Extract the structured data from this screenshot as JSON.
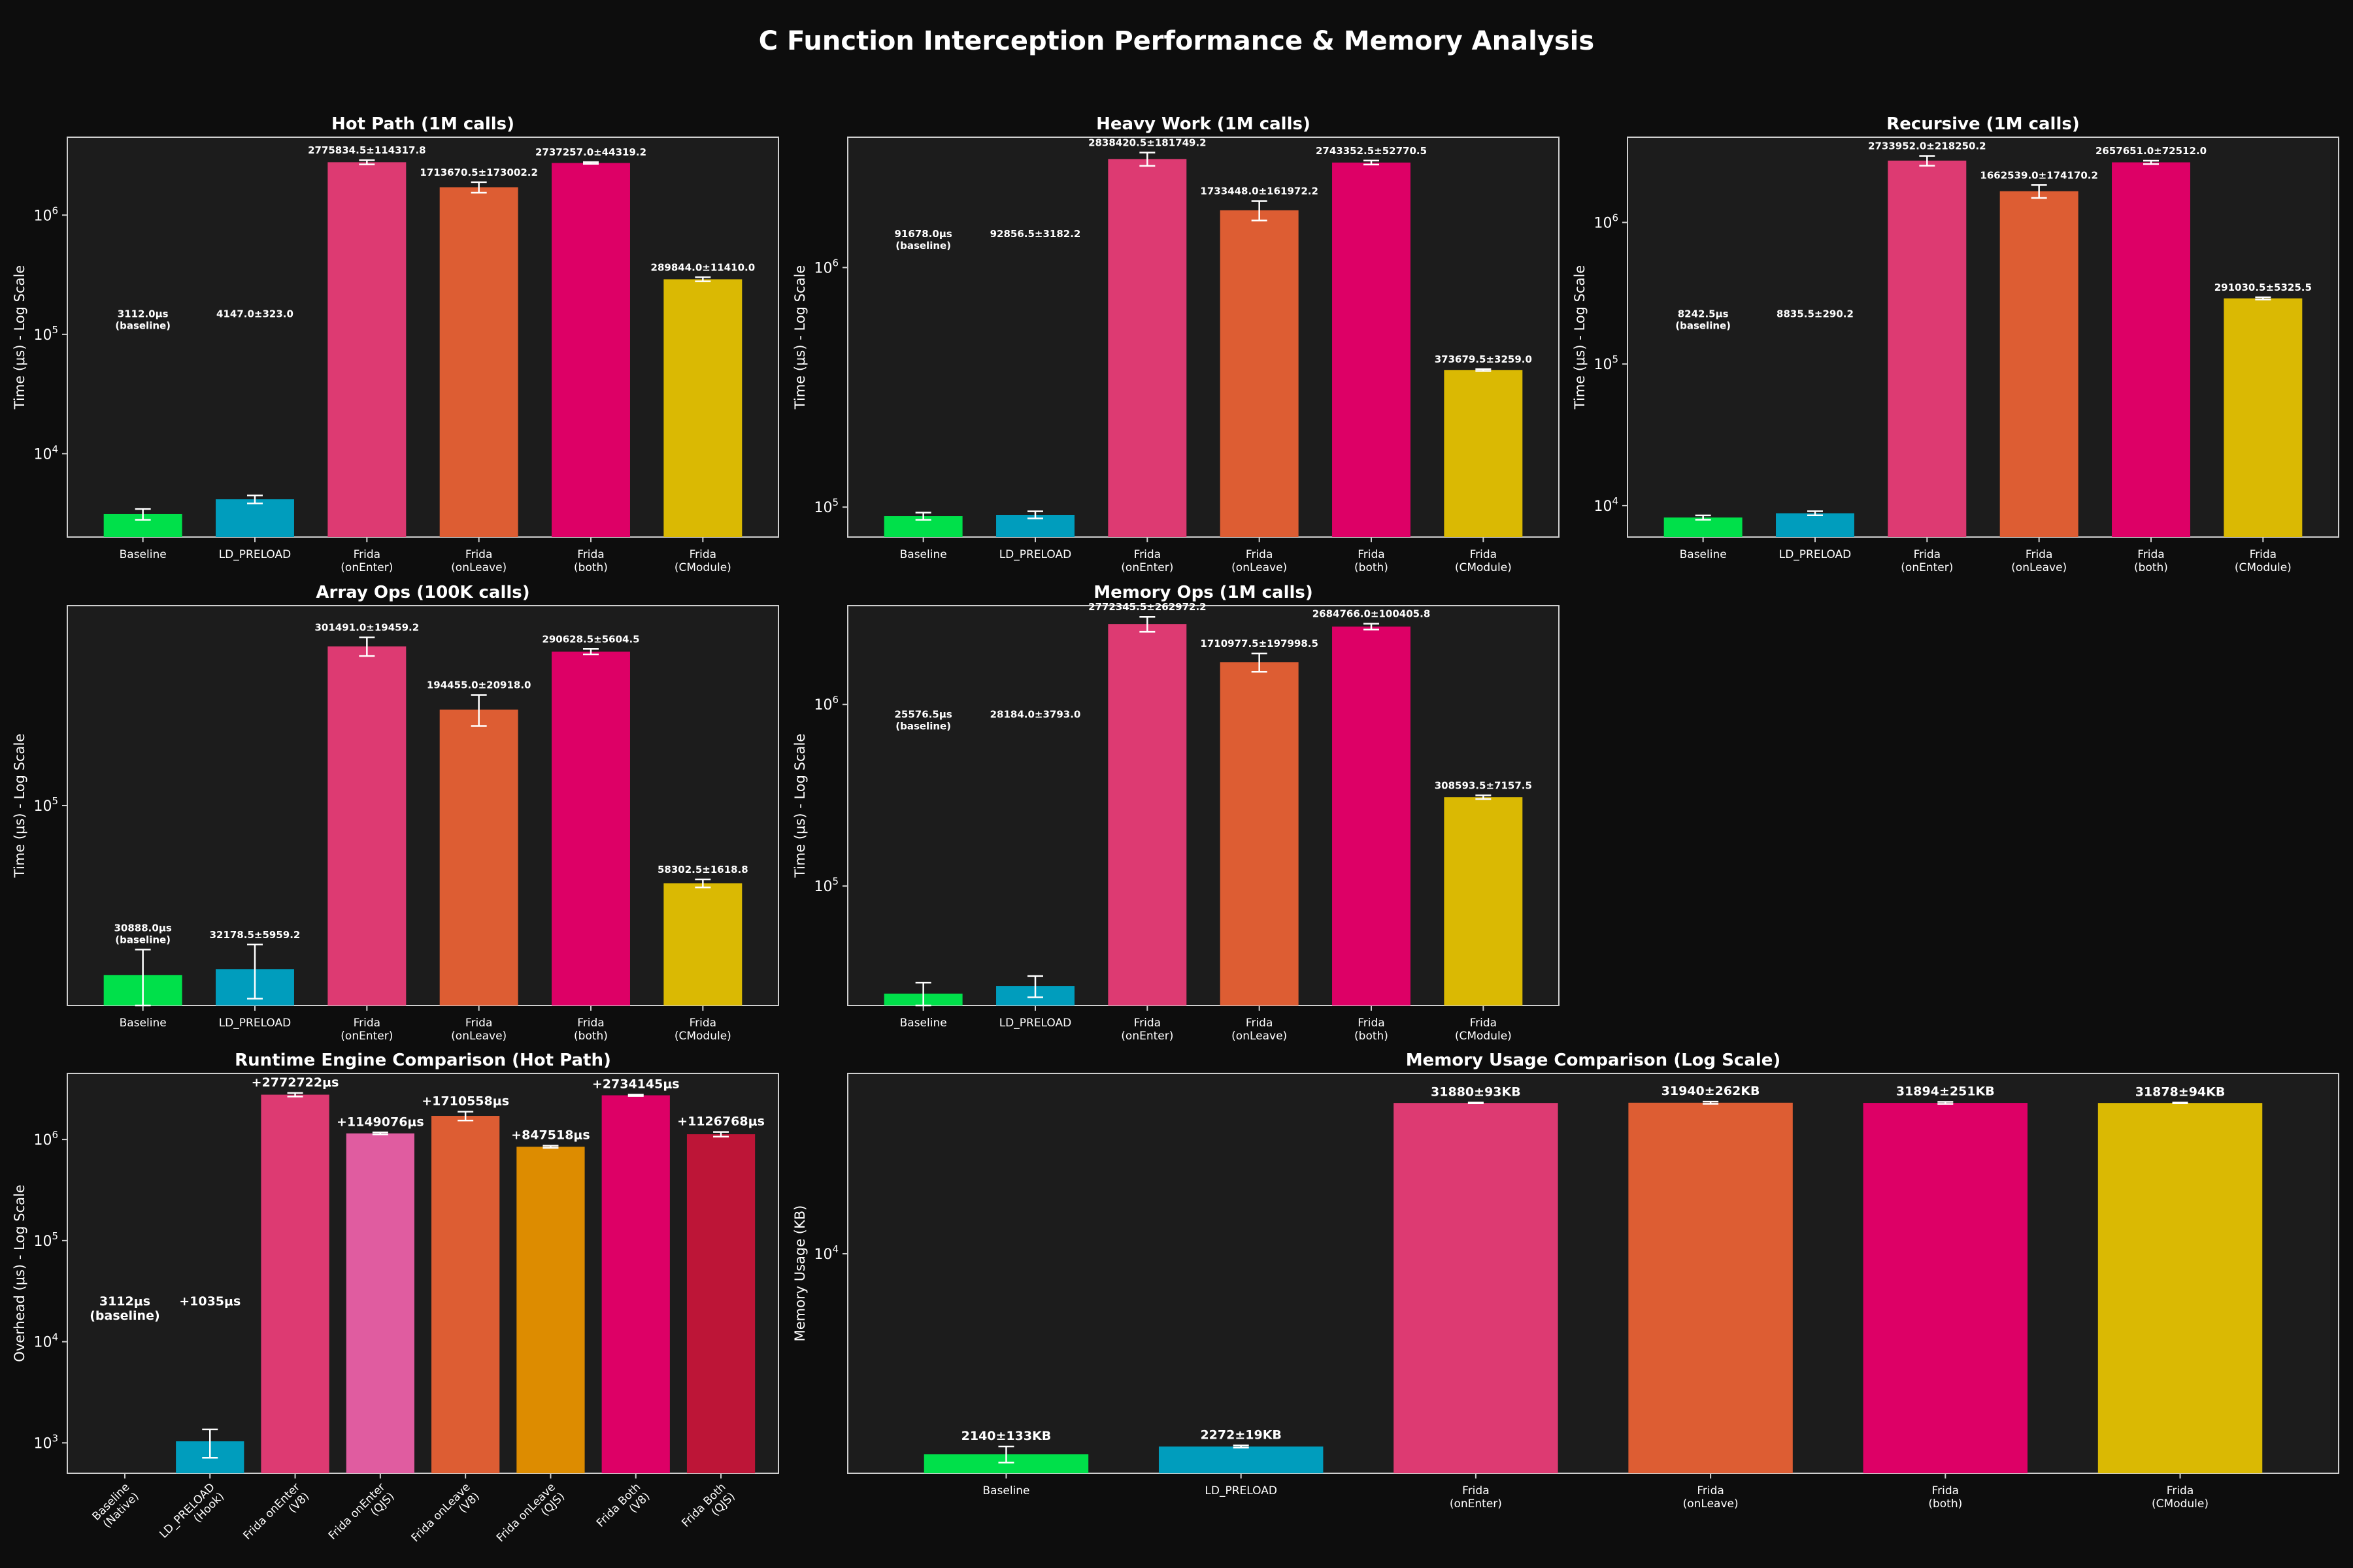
{
  "title": "C Function Interception Performance & Memory Analysis",
  "colors": {
    "background": "#0d0d0d",
    "panel": "#1c1c1c",
    "text": "#ffffff",
    "baseline": "#00e04a",
    "ld_preload": "#009dbd",
    "frida_onenter": "#dd3a72",
    "frida_onleave": "#dd5d33",
    "frida_both": "#dd0066",
    "frida_cmodule": "#dab903",
    "onenter_qjs": "#e05ca0",
    "onleave_qjs": "#dd8c00",
    "both_qjs": "#bd1537"
  },
  "chart_data": [
    {
      "type": "bar",
      "title": "Hot Path (1M calls)",
      "ylabel": "Time (μs) - Log Scale",
      "log": true,
      "ylim": [
        2000,
        4500000
      ],
      "yticks": [
        {
          "v": 10000,
          "b": "10",
          "e": "4"
        },
        {
          "v": 100000,
          "b": "10",
          "e": "5"
        },
        {
          "v": 1000000,
          "b": "10",
          "e": "6"
        }
      ],
      "categories": [
        "Baseline",
        "LD_PRELOAD",
        "Frida\n(onEnter)",
        "Frida\n(onLeave)",
        "Frida\n(both)",
        "Frida\n(CModule)"
      ],
      "values": [
        3112,
        4147,
        2775834.5,
        1713670.5,
        2737257,
        289844
      ],
      "errors": [
        323,
        323,
        114317.8,
        173002.2,
        44319.2,
        11410
      ],
      "labels": [
        "3112.0μs\n(baseline)",
        "4147.0±323.0",
        "2775834.5±114317.8",
        "1713670.5±173002.2",
        "2737257.0±44319.2",
        "289844.0±11410.0"
      ],
      "label_pos": [
        "float",
        "float",
        "top",
        "top",
        "top",
        "top"
      ],
      "colors": [
        "#00e04a",
        "#009dbd",
        "#dd3a72",
        "#dd5d33",
        "#dd0066",
        "#dab903"
      ]
    },
    {
      "type": "bar",
      "title": "Heavy Work (1M calls)",
      "ylabel": "Time (μs) - Log Scale",
      "log": true,
      "ylim": [
        75000,
        3500000
      ],
      "yticks": [
        {
          "v": 100000,
          "b": "10",
          "e": "5"
        },
        {
          "v": 1000000,
          "b": "10",
          "e": "6"
        }
      ],
      "categories": [
        "Baseline",
        "LD_PRELOAD",
        "Frida\n(onEnter)",
        "Frida\n(onLeave)",
        "Frida\n(both)",
        "Frida\n(CModule)"
      ],
      "values": [
        91678,
        92856.5,
        2838420.5,
        1733448,
        2743352.5,
        373679.5
      ],
      "errors": [
        3182.2,
        3182.2,
        181749.2,
        161972.2,
        52770.5,
        3259
      ],
      "labels": [
        "91678.0μs\n(baseline)",
        "92856.5±3182.2",
        "2838420.5±181749.2",
        "1733448.0±161972.2",
        "2743352.5±52770.5",
        "373679.5±3259.0"
      ],
      "label_pos": [
        "float",
        "float",
        "top",
        "top",
        "top",
        "top"
      ],
      "colors": [
        "#00e04a",
        "#009dbd",
        "#dd3a72",
        "#dd5d33",
        "#dd0066",
        "#dab903"
      ]
    },
    {
      "type": "bar",
      "title": "Recursive (1M calls)",
      "ylabel": "Time (μs) - Log Scale",
      "log": true,
      "ylim": [
        6000,
        4000000
      ],
      "yticks": [
        {
          "v": 10000,
          "b": "10",
          "e": "4"
        },
        {
          "v": 100000,
          "b": "10",
          "e": "5"
        },
        {
          "v": 1000000,
          "b": "10",
          "e": "6"
        }
      ],
      "categories": [
        "Baseline",
        "LD_PRELOAD",
        "Frida\n(onEnter)",
        "Frida\n(onLeave)",
        "Frida\n(both)",
        "Frida\n(CModule)"
      ],
      "values": [
        8242.5,
        8835.5,
        2733952,
        1662539,
        2657651,
        291030.5
      ],
      "errors": [
        290.2,
        290.2,
        218250.2,
        174170.2,
        72512,
        5325.5
      ],
      "labels": [
        "8242.5μs\n(baseline)",
        "8835.5±290.2",
        "2733952.0±218250.2",
        "1662539.0±174170.2",
        "2657651.0±72512.0",
        "291030.5±5325.5"
      ],
      "label_pos": [
        "float",
        "float",
        "top",
        "top",
        "top",
        "top"
      ],
      "colors": [
        "#00e04a",
        "#009dbd",
        "#dd3a72",
        "#dd5d33",
        "#dd0066",
        "#dab903"
      ]
    },
    {
      "type": "bar",
      "title": "Array Ops (100K calls)",
      "ylabel": "Time (μs) - Log Scale",
      "log": true,
      "ylim": [
        25000,
        400000
      ],
      "yticks": [
        {
          "v": 100000,
          "b": "10",
          "e": "5"
        }
      ],
      "categories": [
        "Baseline",
        "LD_PRELOAD",
        "Frida\n(onEnter)",
        "Frida\n(onLeave)",
        "Frida\n(both)",
        "Frida\n(CModule)"
      ],
      "values": [
        30888,
        32178.5,
        301491,
        194455,
        290628.5,
        58302.5
      ],
      "errors": [
        5959.2,
        5959.2,
        19459.2,
        20918,
        5604.5,
        1618.8
      ],
      "labels": [
        "30888.0μs\n(baseline)",
        "32178.5±5959.2",
        "301491.0±19459.2",
        "194455.0±20918.0",
        "290628.5±5604.5",
        "58302.5±1618.8"
      ],
      "label_pos": [
        "above",
        "above",
        "top",
        "top",
        "top",
        "top"
      ],
      "colors": [
        "#00e04a",
        "#009dbd",
        "#dd3a72",
        "#dd5d33",
        "#dd0066",
        "#dab903"
      ]
    },
    {
      "type": "bar",
      "title": "Memory Ops (1M calls)",
      "ylabel": "Time (μs) - Log Scale",
      "log": true,
      "ylim": [
        22000,
        3500000
      ],
      "yticks": [
        {
          "v": 100000,
          "b": "10",
          "e": "5"
        },
        {
          "v": 1000000,
          "b": "10",
          "e": "6"
        }
      ],
      "categories": [
        "Baseline",
        "LD_PRELOAD",
        "Frida\n(onEnter)",
        "Frida\n(onLeave)",
        "Frida\n(both)",
        "Frida\n(CModule)"
      ],
      "values": [
        25576.5,
        28184,
        2772345.5,
        1710977.5,
        2684766,
        308593.5
      ],
      "errors": [
        3793,
        3793,
        262972.2,
        197998.5,
        100405.8,
        7157.5
      ],
      "labels": [
        "25576.5μs\n(baseline)",
        "28184.0±3793.0",
        "2772345.5±262972.2",
        "1710977.5±197998.5",
        "2684766.0±100405.8",
        "308593.5±7157.5"
      ],
      "label_pos": [
        "float",
        "float",
        "top",
        "top",
        "top",
        "top"
      ],
      "colors": [
        "#00e04a",
        "#009dbd",
        "#dd3a72",
        "#dd5d33",
        "#dd0066",
        "#dab903"
      ]
    },
    {
      "type": "bar",
      "title": "Runtime Engine Comparison (Hot Path)",
      "ylabel": "Overhead (μs) - Log Scale",
      "log": true,
      "ylim": [
        500,
        4500000
      ],
      "yticks": [
        {
          "v": 1000,
          "b": "10",
          "e": "3"
        },
        {
          "v": 10000,
          "b": "10",
          "e": "4"
        },
        {
          "v": 100000,
          "b": "10",
          "e": "5"
        },
        {
          "v": 1000000,
          "b": "10",
          "e": "6"
        }
      ],
      "categories": [
        "Baseline\n(Native)",
        "LD_PRELOAD\n(Hook)",
        "Frida onEnter\n(V8)",
        "Frida onEnter\n(QJS)",
        "Frida onLeave\n(V8)",
        "Frida onLeave\n(QJS)",
        "Frida Both\n(V8)",
        "Frida Both\n(QJS)"
      ],
      "values": [
        null,
        1035,
        2772722,
        1149076,
        1710558,
        847518,
        2734145,
        1126768
      ],
      "errors": [
        0,
        323,
        114317.8,
        25000,
        173002.2,
        20000,
        44319.2,
        60000
      ],
      "labels": [
        "3112μs\n(baseline)",
        "+1035μs",
        "+2772722μs",
        "+1149076μs",
        "+1710558μs",
        "+847518μs",
        "+2734145μs",
        "+1126768μs"
      ],
      "label_pos": [
        "float",
        "float",
        "top",
        "top",
        "top",
        "top",
        "top",
        "top"
      ],
      "rotate_ticks": true,
      "colors": [
        "#00e04a",
        "#009dbd",
        "#dd3a72",
        "#e05ca0",
        "#dd5d33",
        "#dd8c00",
        "#dd0066",
        "#bd1537"
      ]
    },
    {
      "type": "bar",
      "title": "Memory Usage Comparison (Log Scale)",
      "ylabel": "Memory Usage (KB)",
      "log": true,
      "ylim": [
        1850,
        40000
      ],
      "yticks": [
        {
          "v": 10000,
          "b": "10",
          "e": "4"
        }
      ],
      "categories": [
        "Baseline",
        "LD_PRELOAD",
        "Frida\n(onEnter)",
        "Frida\n(onLeave)",
        "Frida\n(both)",
        "Frida\n(CModule)"
      ],
      "values": [
        2140,
        2272,
        31880,
        31940,
        31894,
        31878
      ],
      "errors": [
        133,
        19,
        93,
        262,
        251,
        94
      ],
      "labels": [
        "2140±133KB",
        "2272±19KB",
        "31880±93KB",
        "31940±262KB",
        "31894±251KB",
        "31878±94KB"
      ],
      "label_pos": [
        "top",
        "top",
        "top",
        "top",
        "top",
        "top"
      ],
      "colors": [
        "#00e04a",
        "#009dbd",
        "#dd3a72",
        "#dd5d33",
        "#dd0066",
        "#dab903"
      ]
    }
  ]
}
